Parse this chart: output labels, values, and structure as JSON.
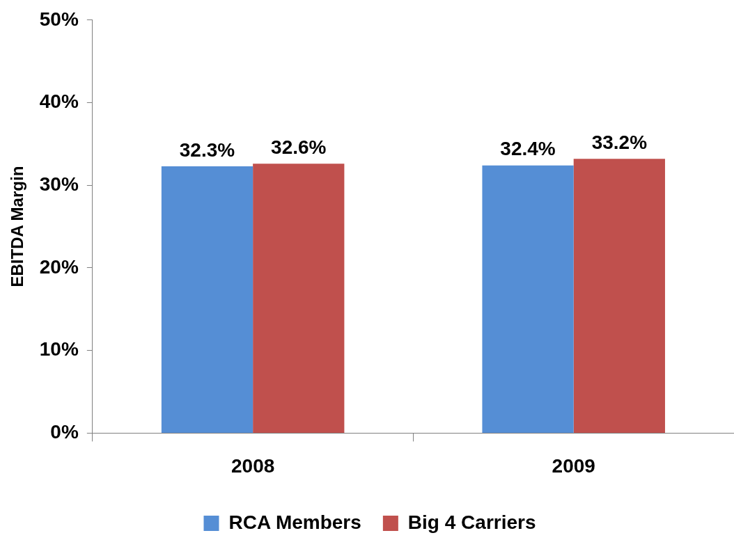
{
  "chart_data": {
    "type": "bar",
    "ylabel": "EBITDA Margin",
    "categories": [
      "2008",
      "2009"
    ],
    "series": [
      {
        "name": "RCA Members",
        "color": "#558ed5",
        "values": [
          32.3,
          32.4
        ],
        "value_labels": [
          "32.3%",
          "32.4%"
        ]
      },
      {
        "name": "Big 4 Carriers",
        "color": "#c0504d",
        "values": [
          32.6,
          33.2
        ],
        "value_labels": [
          "32.6%",
          "33.2%"
        ]
      }
    ],
    "ylim": [
      0,
      50
    ],
    "yticks": [
      {
        "value": 0,
        "label": "0%"
      },
      {
        "value": 10,
        "label": "10%"
      },
      {
        "value": 20,
        "label": "20%"
      },
      {
        "value": 30,
        "label": "30%"
      },
      {
        "value": 40,
        "label": "40%"
      },
      {
        "value": 50,
        "label": "50%"
      }
    ],
    "grid": false,
    "legend": "bottom"
  }
}
